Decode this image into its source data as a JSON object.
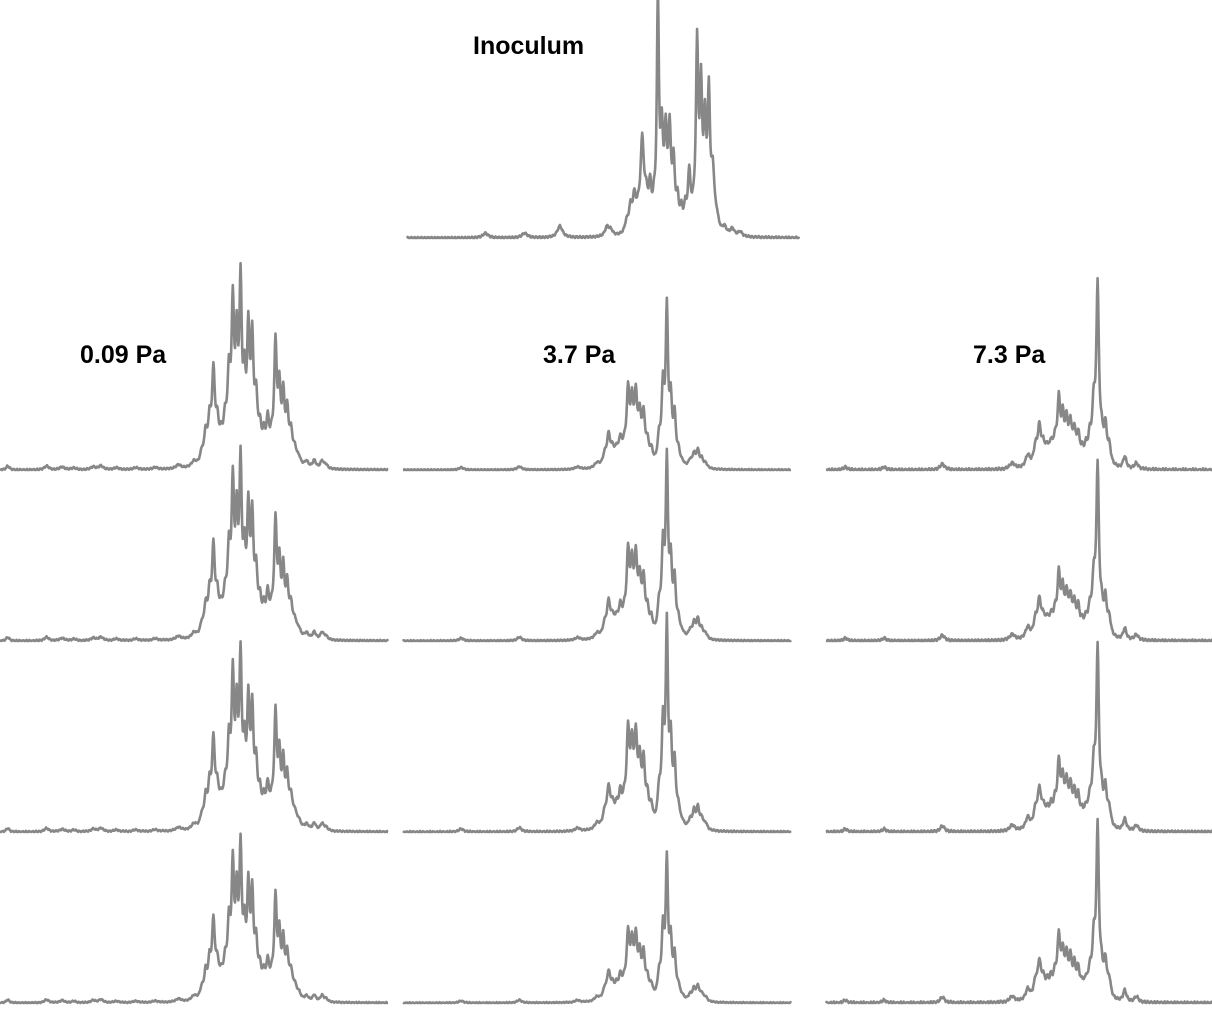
{
  "chart_data": {
    "type": "line",
    "title": "",
    "xlabel": "",
    "ylabel": "",
    "axes_shown": false,
    "grid": false,
    "line_color": "#878787",
    "background": "#ffffff",
    "x_range": [
      0,
      100
    ],
    "y_range": [
      0,
      1
    ],
    "note": "",
    "peak_profiles": {
      "inoculum": [
        [
          20,
          0.02,
          0.8
        ],
        [
          30,
          0.02,
          0.8
        ],
        [
          39,
          0.05,
          0.8
        ],
        [
          51,
          0.04,
          0.6
        ],
        [
          52,
          0.025,
          0.6
        ],
        [
          56,
          0.045,
          0.5
        ],
        [
          57,
          0.1,
          0.5
        ],
        [
          58,
          0.14,
          0.5
        ],
        [
          59,
          0.07,
          0.5
        ],
        [
          60,
          0.38,
          0.5
        ],
        [
          61,
          0.13,
          0.5
        ],
        [
          62,
          0.17,
          0.4
        ],
        [
          63,
          0.09,
          0.4
        ],
        [
          64,
          0.98,
          0.32
        ],
        [
          65,
          0.38,
          0.4
        ],
        [
          66,
          0.38,
          0.4
        ],
        [
          67,
          0.4,
          0.4
        ],
        [
          68,
          0.27,
          0.4
        ],
        [
          69,
          0.12,
          0.4
        ],
        [
          70,
          0.08,
          0.4
        ],
        [
          71,
          0.09,
          0.4
        ],
        [
          72,
          0.24,
          0.4
        ],
        [
          73,
          0.06,
          0.4
        ],
        [
          74,
          0.78,
          0.36
        ],
        [
          75,
          0.56,
          0.36
        ],
        [
          76,
          0.42,
          0.4
        ],
        [
          77,
          0.55,
          0.36
        ],
        [
          78,
          0.24,
          0.5
        ],
        [
          79,
          0.05,
          0.6
        ],
        [
          81,
          0.03,
          0.6
        ],
        [
          83,
          0.03,
          0.6
        ],
        [
          85,
          0.02,
          0.6
        ]
      ],
      "p009": [
        [
          2,
          0.02,
          0.5
        ],
        [
          12,
          0.02,
          0.7
        ],
        [
          16,
          0.015,
          0.7
        ],
        [
          19,
          0.01,
          0.7
        ],
        [
          24,
          0.015,
          0.7
        ],
        [
          26,
          0.02,
          0.7
        ],
        [
          30,
          0.01,
          0.8
        ],
        [
          35,
          0.01,
          0.8
        ],
        [
          40,
          0.01,
          0.8
        ],
        [
          46,
          0.02,
          0.8
        ],
        [
          50,
          0.03,
          0.8
        ],
        [
          52,
          0.06,
          0.5
        ],
        [
          53,
          0.15,
          0.45
        ],
        [
          54,
          0.2,
          0.45
        ],
        [
          55,
          0.45,
          0.45
        ],
        [
          56,
          0.18,
          0.5
        ],
        [
          57,
          0.1,
          0.5
        ],
        [
          58,
          0.18,
          0.5
        ],
        [
          59,
          0.4,
          0.45
        ],
        [
          60,
          0.75,
          0.4
        ],
        [
          61,
          0.55,
          0.4
        ],
        [
          62,
          0.86,
          0.38
        ],
        [
          63,
          0.35,
          0.4
        ],
        [
          64,
          0.62,
          0.4
        ],
        [
          65,
          0.58,
          0.4
        ],
        [
          66,
          0.3,
          0.45
        ],
        [
          67,
          0.15,
          0.45
        ],
        [
          68,
          0.12,
          0.45
        ],
        [
          69,
          0.2,
          0.45
        ],
        [
          70,
          0.1,
          0.45
        ],
        [
          71,
          0.6,
          0.4
        ],
        [
          72,
          0.35,
          0.4
        ],
        [
          73,
          0.32,
          0.4
        ],
        [
          74,
          0.25,
          0.45
        ],
        [
          75,
          0.15,
          0.5
        ],
        [
          76,
          0.07,
          0.5
        ],
        [
          77,
          0.04,
          0.6
        ],
        [
          79,
          0.03,
          0.6
        ],
        [
          81,
          0.04,
          0.5
        ],
        [
          83,
          0.04,
          0.5
        ],
        [
          84,
          0.02,
          0.5
        ]
      ],
      "p37": [
        [
          15,
          0.015,
          0.7
        ],
        [
          30,
          0.02,
          0.7
        ],
        [
          45,
          0.015,
          0.8
        ],
        [
          50,
          0.03,
          0.8
        ],
        [
          52,
          0.07,
          0.6
        ],
        [
          53,
          0.18,
          0.5
        ],
        [
          54,
          0.09,
          0.5
        ],
        [
          55,
          0.08,
          0.5
        ],
        [
          56,
          0.14,
          0.5
        ],
        [
          57,
          0.09,
          0.5
        ],
        [
          58,
          0.42,
          0.45
        ],
        [
          59,
          0.33,
          0.45
        ],
        [
          60,
          0.38,
          0.45
        ],
        [
          61,
          0.26,
          0.45
        ],
        [
          62,
          0.28,
          0.45
        ],
        [
          63,
          0.12,
          0.45
        ],
        [
          64,
          0.08,
          0.45
        ],
        [
          66,
          0.15,
          0.45
        ],
        [
          67,
          0.45,
          0.4
        ],
        [
          68,
          0.92,
          0.36
        ],
        [
          69,
          0.36,
          0.4
        ],
        [
          70,
          0.28,
          0.4
        ],
        [
          71,
          0.08,
          0.45
        ],
        [
          72,
          0.02,
          0.5
        ],
        [
          74,
          0.04,
          0.5
        ],
        [
          75,
          0.08,
          0.45
        ],
        [
          76,
          0.1,
          0.45
        ],
        [
          77,
          0.05,
          0.45
        ],
        [
          78,
          0.03,
          0.5
        ]
      ],
      "p73": [
        [
          5,
          0.01,
          0.6
        ],
        [
          15,
          0.01,
          0.6
        ],
        [
          30,
          0.02,
          0.7
        ],
        [
          48,
          0.02,
          0.8
        ],
        [
          52,
          0.04,
          0.7
        ],
        [
          54,
          0.06,
          0.6
        ],
        [
          55,
          0.12,
          0.5
        ],
        [
          56,
          0.06,
          0.5
        ],
        [
          57,
          0.05,
          0.5
        ],
        [
          58,
          0.06,
          0.5
        ],
        [
          59,
          0.07,
          0.5
        ],
        [
          60,
          0.2,
          0.45
        ],
        [
          61,
          0.14,
          0.45
        ],
        [
          62,
          0.13,
          0.45
        ],
        [
          63,
          0.12,
          0.45
        ],
        [
          64,
          0.1,
          0.45
        ],
        [
          65,
          0.09,
          0.45
        ],
        [
          66,
          0.04,
          0.5
        ],
        [
          67,
          0.05,
          0.5
        ],
        [
          68,
          0.08,
          0.45
        ],
        [
          69,
          0.18,
          0.45
        ],
        [
          70,
          0.58,
          0.4
        ],
        [
          71,
          0.08,
          0.45
        ],
        [
          72,
          0.12,
          0.45
        ],
        [
          73,
          0.06,
          0.5
        ],
        [
          77,
          0.04,
          0.5
        ],
        [
          80,
          0.02,
          0.6
        ]
      ]
    },
    "panels": [
      {
        "profile": "inoculum",
        "scale": 1.0,
        "group": "Inoculum"
      },
      {
        "profile": "p009",
        "scale": 1.0,
        "group": "0.09 Pa"
      },
      {
        "profile": "p009",
        "scale": 0.98,
        "group": "0.09 Pa"
      },
      {
        "profile": "p009",
        "scale": 1.0,
        "group": "0.09 Pa"
      },
      {
        "profile": "p009",
        "scale": 1.02,
        "group": "0.09 Pa"
      },
      {
        "profile": "p37",
        "scale": 1.0,
        "group": "3.7 Pa"
      },
      {
        "profile": "p37",
        "scale": 0.98,
        "group": "3.7 Pa"
      },
      {
        "profile": "p37",
        "scale": 1.05,
        "group": "3.7 Pa"
      },
      {
        "profile": "p37",
        "scale": 0.97,
        "group": "3.7 Pa"
      },
      {
        "profile": "p73",
        "scale": 1.0,
        "group": "7.3 Pa"
      },
      {
        "profile": "p73",
        "scale": 0.98,
        "group": "7.3 Pa"
      },
      {
        "profile": "p73",
        "scale": 1.02,
        "group": "7.3 Pa"
      },
      {
        "profile": "p73",
        "scale": 0.99,
        "group": "7.3 Pa"
      }
    ]
  },
  "labels": {
    "inoculum": "Inoculum",
    "group1": "0.09 Pa",
    "group2": "3.7 Pa",
    "group3": "7.3 Pa"
  }
}
